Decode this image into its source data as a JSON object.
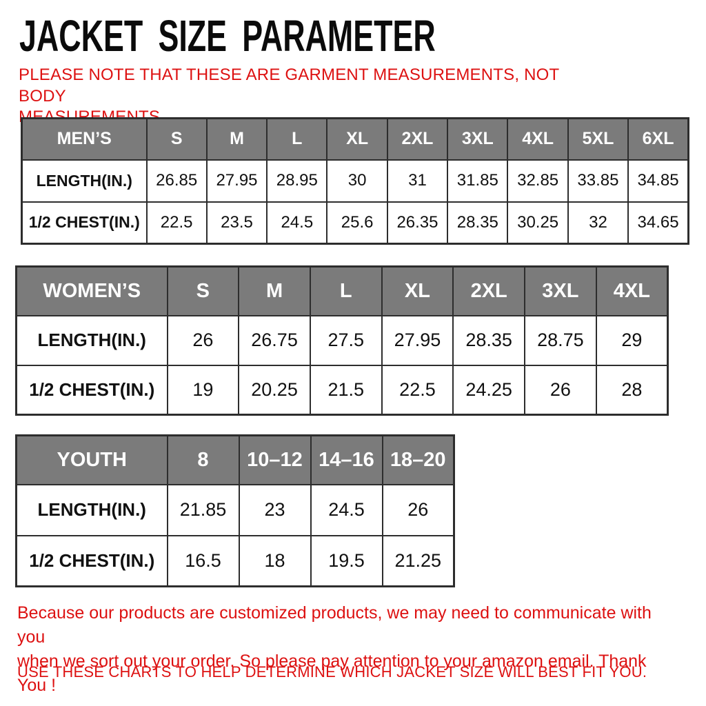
{
  "page": {
    "title": "JACKET SIZE PARAMETER",
    "note_line1": "PLEASE NOTE THAT THESE ARE GARMENT MEASUREMENTS, NOT BODY",
    "note_line2": "MEASUREMENTS",
    "footer_line1": "Because our products are customized products, we may need to communicate with you",
    "footer_line2": "when we sort out your order. So please pay attention to your amazon email. Thank You !",
    "footer_caps": "USE THESE CHARTS TO HELP DETERMINE WHICH JACKET SIZE WILL BEST FIT YOU."
  },
  "colors": {
    "accent_red": "#dd1111",
    "header_gray": "#7b7b7b",
    "border_dark": "#2d2d2d"
  },
  "tables": {
    "mens": {
      "name": "MEN’S",
      "sizes": [
        "S",
        "M",
        "L",
        "XL",
        "2XL",
        "3XL",
        "4XL",
        "5XL",
        "6XL"
      ],
      "rows": [
        {
          "label": "LENGTH(IN.)",
          "values": [
            "26.85",
            "27.95",
            "28.95",
            "30",
            "31",
            "31.85",
            "32.85",
            "33.85",
            "34.85"
          ]
        },
        {
          "label": "1/2 CHEST(IN.)",
          "values": [
            "22.5",
            "23.5",
            "24.5",
            "25.6",
            "26.35",
            "28.35",
            "30.25",
            "32",
            "34.65"
          ]
        }
      ]
    },
    "womens": {
      "name": "WOMEN’S",
      "sizes": [
        "S",
        "M",
        "L",
        "XL",
        "2XL",
        "3XL",
        "4XL"
      ],
      "rows": [
        {
          "label": "LENGTH(IN.)",
          "values": [
            "26",
            "26.75",
            "27.5",
            "27.95",
            "28.35",
            "28.75",
            "29"
          ]
        },
        {
          "label": "1/2 CHEST(IN.)",
          "values": [
            "19",
            "20.25",
            "21.5",
            "22.5",
            "24.25",
            "26",
            "28"
          ]
        }
      ]
    },
    "youth": {
      "name": "YOUTH",
      "sizes": [
        "8",
        "10–12",
        "14–16",
        "18–20"
      ],
      "rows": [
        {
          "label": "LENGTH(IN.)",
          "values": [
            "21.85",
            "23",
            "24.5",
            "26"
          ]
        },
        {
          "label": "1/2 CHEST(IN.)",
          "values": [
            "16.5",
            "18",
            "19.5",
            "21.25"
          ]
        }
      ]
    }
  }
}
